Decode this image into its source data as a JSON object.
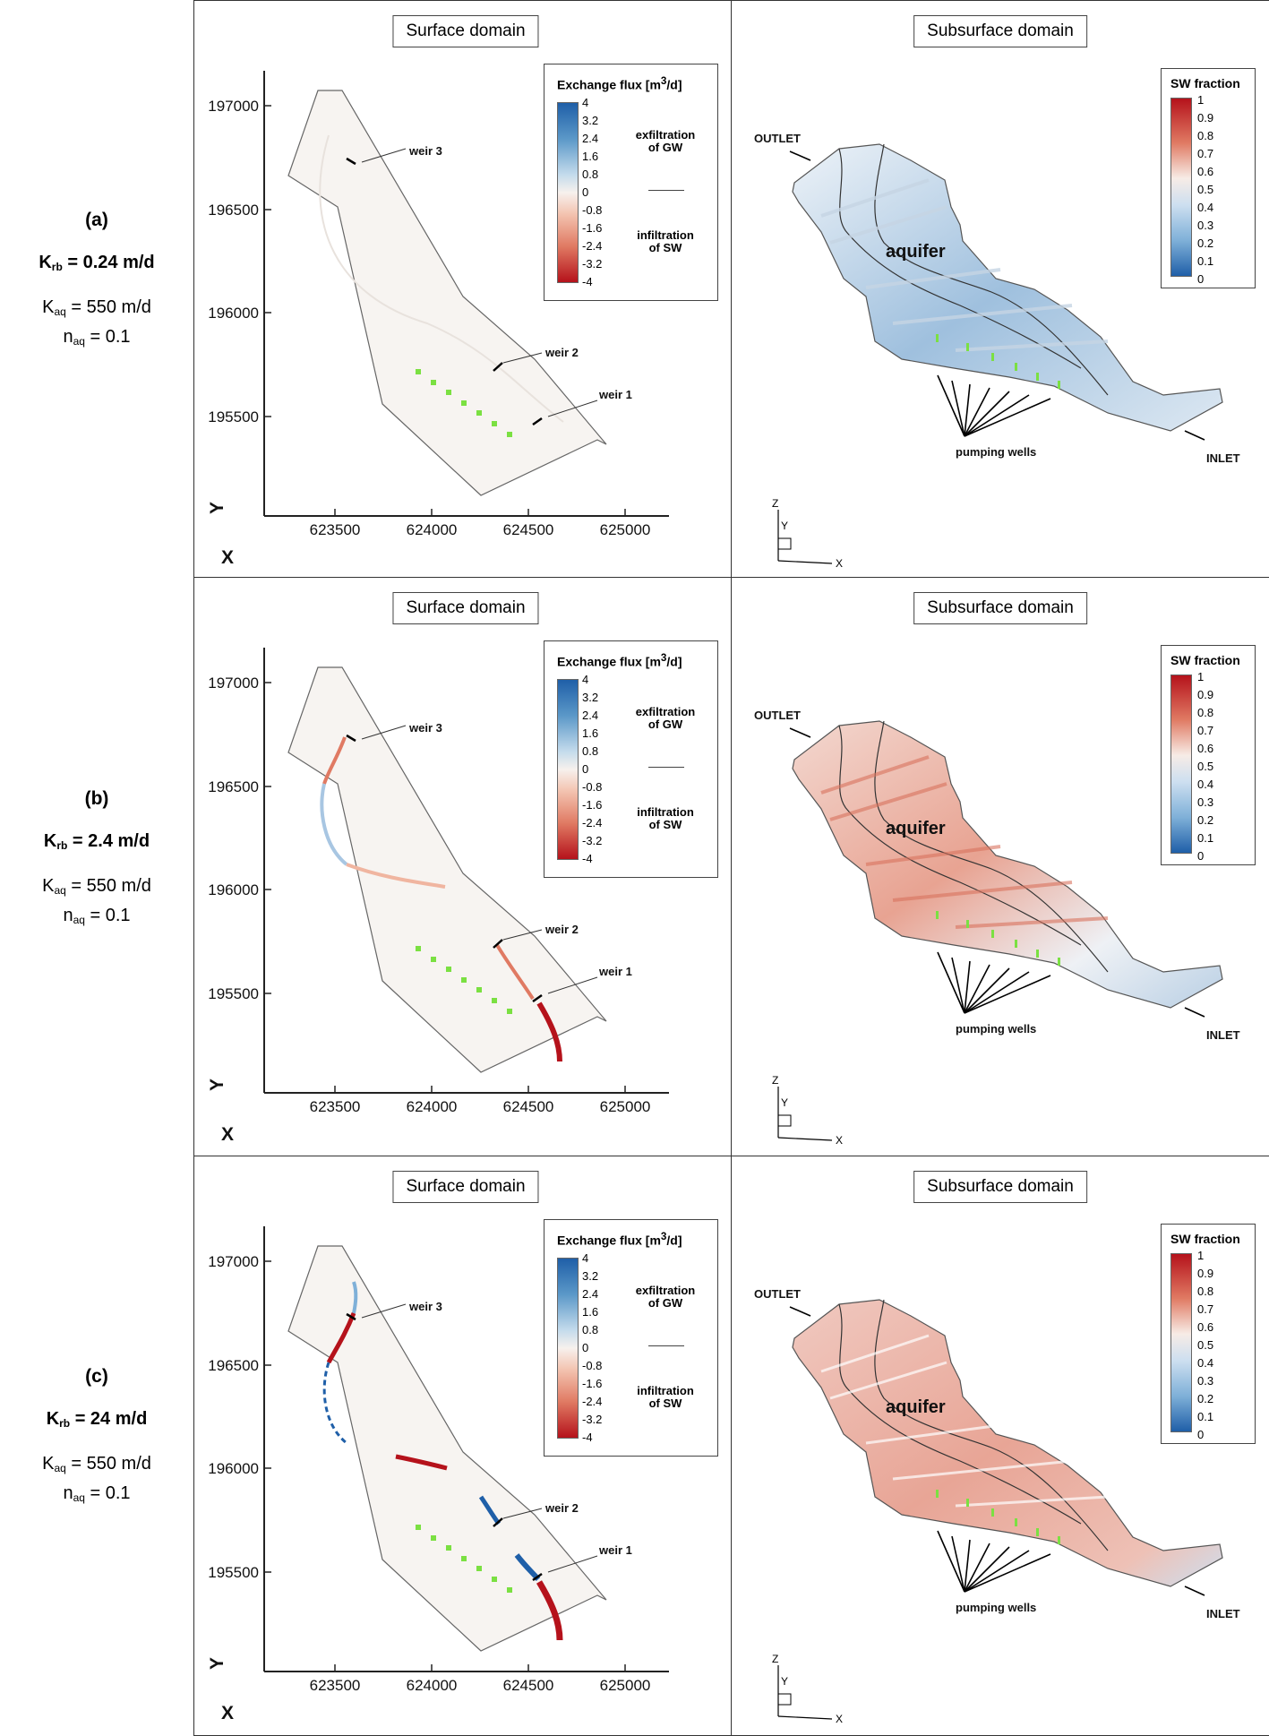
{
  "rows": [
    {
      "tag": "(a)",
      "krb_label": "K",
      "krb_sub": "rb",
      "krb_value": " = 0.24 m/d",
      "kaq_label": "K",
      "kaq_sub": "aq",
      "kaq_value": " = 550 m/d",
      "naq_label": "n",
      "naq_sub": "aq",
      "naq_value": " = 0.1"
    },
    {
      "tag": "(b)",
      "krb_label": "K",
      "krb_sub": "rb",
      "krb_value": " = 2.4 m/d",
      "kaq_label": "K",
      "kaq_sub": "aq",
      "kaq_value": " = 550 m/d",
      "naq_label": "n",
      "naq_sub": "aq",
      "naq_value": " = 0.1"
    },
    {
      "tag": "(c)",
      "krb_label": "K",
      "krb_sub": "rb",
      "krb_value": " = 24 m/d",
      "kaq_label": "K",
      "kaq_sub": "aq",
      "kaq_value": " = 550 m/d",
      "naq_label": "n",
      "naq_sub": "aq",
      "naq_value": " = 0.1"
    }
  ],
  "surface": {
    "title": "Surface domain",
    "legend_title": "Exchange flux [m",
    "legend_title_sup": "3",
    "legend_title_end": "/d]",
    "legend_ticks": [
      "4",
      "3.2",
      "2.4",
      "1.6",
      "0.8",
      "0",
      "-0.8",
      "-1.6",
      "-2.4",
      "-3.2",
      "-4"
    ],
    "exfiltration_label": [
      "exfiltration",
      "of GW"
    ],
    "infiltration_label": [
      "infiltration",
      "of SW"
    ],
    "x_ticks": [
      "623500",
      "624000",
      "624500",
      "625000"
    ],
    "y_ticks": [
      "197000",
      "196500",
      "196000",
      "195500"
    ],
    "x_axis_label": "X",
    "y_axis_label": "Y",
    "weirs": [
      "weir 3",
      "weir 2",
      "weir 1"
    ]
  },
  "subsurface": {
    "title": "Subsurface domain",
    "legend_title": "SW fraction",
    "legend_ticks": [
      "1",
      "0.9",
      "0.8",
      "0.7",
      "0.6",
      "0.5",
      "0.4",
      "0.3",
      "0.2",
      "0.1",
      "0"
    ],
    "outlet_label": "OUTLET",
    "inlet_label": "INLET",
    "aquifer_label": "aquifer",
    "wells_label": "pumping wells",
    "axis_z": "Z",
    "axis_y": "Y",
    "axis_x": "X"
  },
  "colors": {
    "flux_positive": "#1f5fa8",
    "flux_negative": "#b5121b",
    "well_marker": "#7be042",
    "domain_fill": "#f7f4f1"
  }
}
